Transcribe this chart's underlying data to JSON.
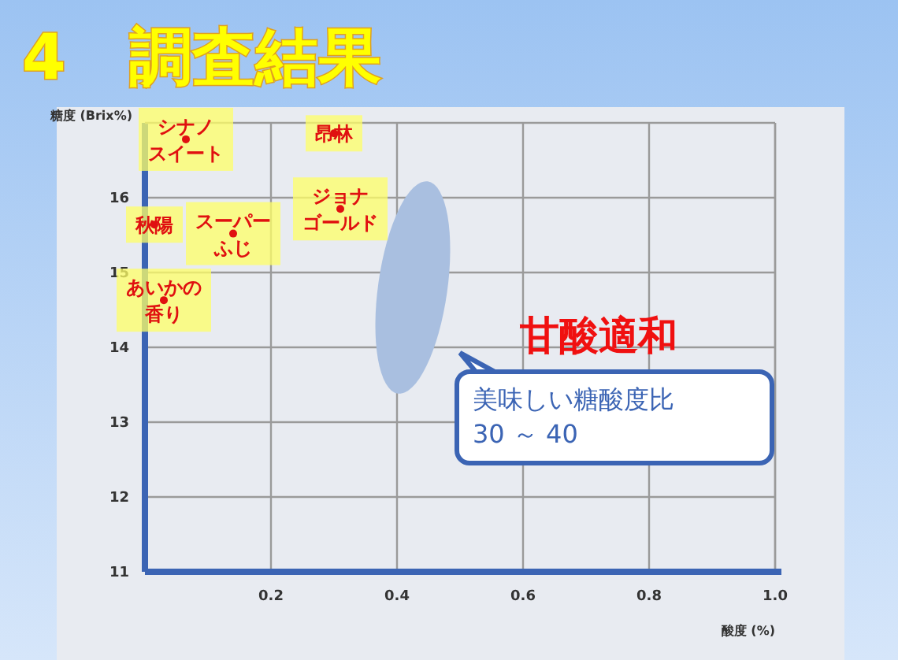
{
  "chart_data": {
    "type": "scatter",
    "title": "4　調査結果",
    "xlabel": "酸度 (%)",
    "ylabel": "糖度 (Brix%)",
    "xlim": [
      0,
      1.0
    ],
    "ylim": [
      11,
      17
    ],
    "xticks": [
      0.2,
      0.4,
      0.6,
      0.8,
      {
        "value": 1,
        "label": "1.0"
      }
    ],
    "yticks": [
      11,
      12,
      13,
      14,
      15,
      16
    ],
    "grid": true,
    "marker": "circle",
    "series": [
      {
        "color": "#e01010",
        "x": [
          0.065,
          0.3,
          0.31,
          0.015,
          0.14,
          0.03
        ],
        "values": [
          16.78,
          16.86,
          15.85,
          15.64,
          15.52,
          14.63
        ],
        "value_labels": [
          "シナノスイート",
          "昂林",
          "ジョナゴールド",
          "秋陽",
          "スーパーふじ",
          "あいかの香り"
        ]
      }
    ],
    "annotations": [
      "甘酸適和",
      "美味しい糖酸度比\n30 ～ 40"
    ]
  }
}
